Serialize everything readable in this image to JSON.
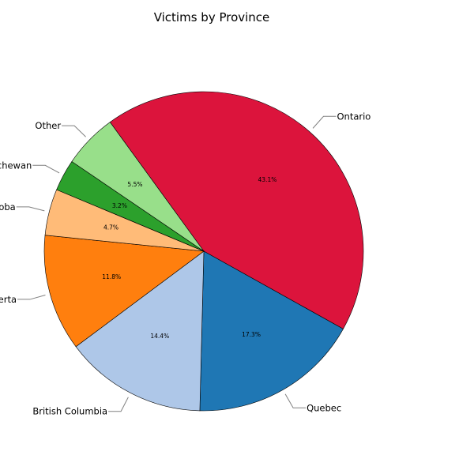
{
  "chart_data": {
    "type": "pie",
    "title": "Victims by Province",
    "start_angle_deg": 126,
    "direction": "clockwise",
    "slices": [
      {
        "label": "Ontario",
        "value": 43.1,
        "pct_label": "43.1%",
        "color": "#dc143c"
      },
      {
        "label": "Quebec",
        "value": 17.3,
        "pct_label": "17.3%",
        "color": "#1f77b4"
      },
      {
        "label": "British Columbia",
        "value": 14.4,
        "pct_label": "14.4%",
        "color": "#aec7e8"
      },
      {
        "label": "Alberta",
        "value": 11.8,
        "pct_label": "11.8%",
        "color": "#ff7f0e"
      },
      {
        "label": "Manitoba",
        "value": 4.7,
        "pct_label": "4.7%",
        "color": "#ffbb78"
      },
      {
        "label": "Saskatchewan",
        "value": 3.2,
        "pct_label": "3.2%",
        "color": "#2ca02c"
      },
      {
        "label": "Other",
        "value": 5.5,
        "pct_label": "5.5%",
        "color": "#98df8a"
      }
    ]
  }
}
